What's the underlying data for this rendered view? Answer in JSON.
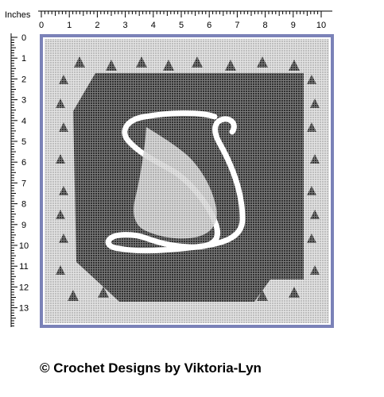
{
  "ruler": {
    "unit_label": "Inches",
    "top_ticks": [
      "0",
      "1",
      "2",
      "3",
      "4",
      "5",
      "6",
      "7",
      "8",
      "9",
      "10"
    ],
    "left_ticks": [
      "0",
      "1",
      "2",
      "3",
      "4",
      "5",
      "6",
      "7",
      "8",
      "9",
      "10",
      "11",
      "12",
      "13"
    ]
  },
  "colors": {
    "border": "#7b82b8",
    "mesh": "#c7c7c7",
    "filled": "#3a3a3a",
    "letter": "#ffffff"
  },
  "pattern": {
    "type": "filet crochet chart",
    "motif": "script letter D with scalloped lace border"
  },
  "footer": {
    "copyright": "© Crochet Designs by Viktoria-Lyn"
  }
}
